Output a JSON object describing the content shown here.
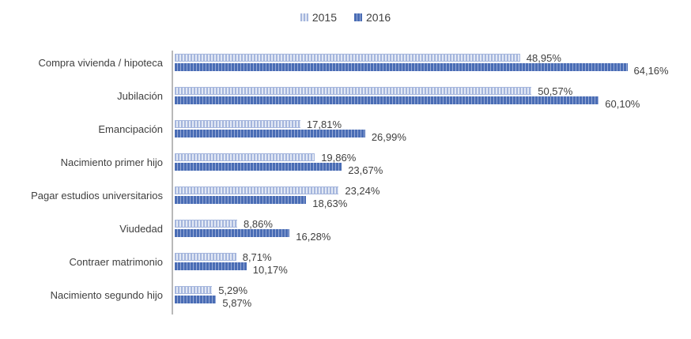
{
  "legend": {
    "items": [
      {
        "label": "2015"
      },
      {
        "label": "2016"
      }
    ]
  },
  "colors": {
    "series-2015-stripe": "#a5b6dd",
    "series-2015-light": "#e3e9f5",
    "series-2016-stripe": "#4a6db5",
    "series-2016-light": "#98abd7",
    "axis-line": "#b9b9b9",
    "label-text": "#3f3f3f"
  },
  "chart_data": {
    "type": "bar",
    "orientation": "horizontal",
    "title": "",
    "xlabel": "",
    "ylabel": "",
    "xlim": [
      0,
      65
    ],
    "grid": false,
    "legend_position": "top-center",
    "value_format": "percent-comma",
    "categories": [
      "Compra vivienda / hipoteca",
      "Jubilación",
      "Emancipación",
      "Nacimiento primer hijo",
      "Pagar estudios universitarios",
      "Viudedad",
      "Contraer matrimonio",
      "Nacimiento segundo hijo"
    ],
    "series": [
      {
        "name": "2015",
        "values": [
          48.95,
          50.57,
          17.81,
          19.86,
          23.24,
          8.86,
          8.71,
          5.29
        ],
        "labels": [
          "48,95%",
          "50,57%",
          "17,81%",
          "19,86%",
          "23,24%",
          "8,86%",
          "8,71%",
          "5,29%"
        ]
      },
      {
        "name": "2016",
        "values": [
          64.16,
          60.1,
          26.99,
          23.67,
          18.63,
          16.28,
          10.17,
          5.87
        ],
        "labels": [
          "64,16%",
          "60,10%",
          "26,99%",
          "23,67%",
          "18,63%",
          "16,28%",
          "10,17%",
          "5,87%"
        ]
      }
    ]
  }
}
